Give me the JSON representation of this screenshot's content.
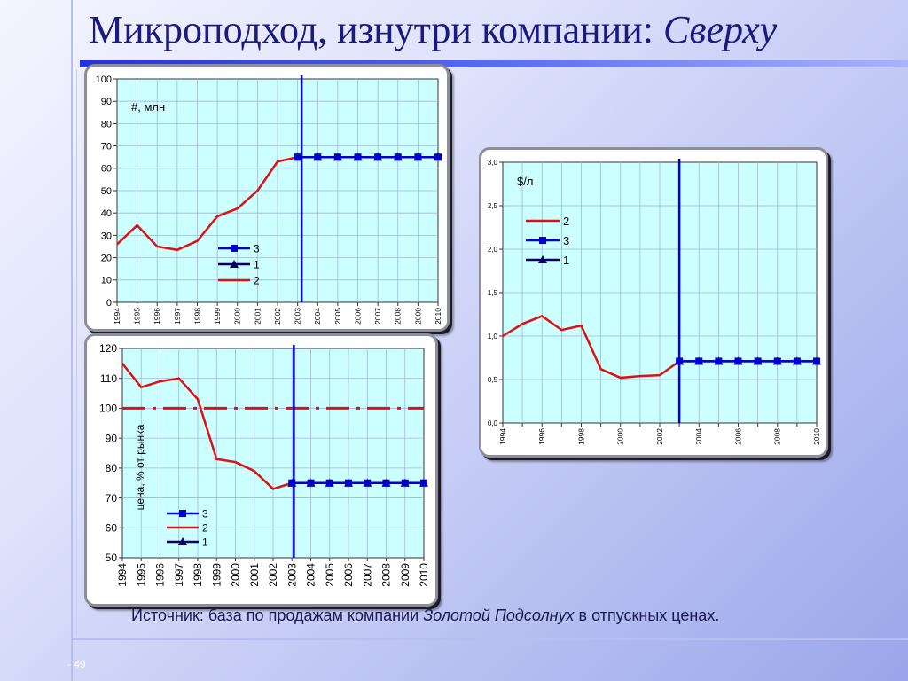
{
  "title": {
    "main": "Микроподход, изнутри компании:",
    "italic": "Сверху"
  },
  "source": {
    "prefix": "Источник: база по продажам компании",
    "company": "Золотой Подсолнух",
    "suffix": "в отпускных ценах."
  },
  "page_number": "- 49",
  "colors": {
    "red": "#dd1111",
    "blue": "#0000cc",
    "navy": "#000066",
    "plot_bg": "#ccffff",
    "grid": "#9fb7dd"
  },
  "chart_data": [
    {
      "type": "line",
      "unit_label": "#, млн",
      "x": [
        1994,
        1995,
        1996,
        1997,
        1998,
        1999,
        2000,
        2001,
        2002,
        2003,
        2004,
        2005,
        2006,
        2007,
        2008,
        2009,
        2010
      ],
      "xticks": [
        "1994",
        "1995",
        "1996",
        "1997",
        "1998",
        "1999",
        "2000",
        "2001",
        "2002",
        "2003",
        "2004",
        "2005",
        "2006",
        "2007",
        "2008",
        "2009",
        "2010"
      ],
      "ylim": [
        0,
        100
      ],
      "yticks": [
        "0",
        "10",
        "20",
        "30",
        "40",
        "50",
        "60",
        "70",
        "80",
        "90",
        "100"
      ],
      "grid": true,
      "vline_x": 2003.2,
      "legend": [
        {
          "name": "3",
          "color": "#0000cc",
          "marker": "square"
        },
        {
          "name": "1",
          "color": "#000066",
          "marker": "triangle"
        },
        {
          "name": "2",
          "color": "#dd1111",
          "marker": "none"
        }
      ],
      "legend_position": "bottom-center",
      "series": [
        {
          "name": "2",
          "color": "#dd1111",
          "x": [
            1994,
            1995,
            1996,
            1997,
            1998,
            1999,
            2000,
            2001,
            2002,
            2003,
            2004,
            2005,
            2006,
            2007,
            2008,
            2009,
            2010
          ],
          "values": [
            26,
            34.5,
            25,
            23.5,
            27.5,
            38.5,
            42,
            50,
            63,
            65,
            65,
            65,
            65,
            65,
            65,
            65,
            65
          ]
        },
        {
          "name": "1",
          "color": "#000066",
          "marker": "triangle",
          "x": [
            2003,
            2004,
            2005,
            2006,
            2007,
            2008,
            2009,
            2010
          ],
          "values": [
            65,
            65,
            65,
            65,
            65,
            65,
            65,
            65
          ]
        },
        {
          "name": "3",
          "color": "#0000cc",
          "marker": "square",
          "x": [
            2003,
            2004,
            2005,
            2006,
            2007,
            2008,
            2009,
            2010
          ],
          "values": [
            65,
            65,
            65,
            65,
            65,
            65,
            65,
            65
          ]
        }
      ]
    },
    {
      "type": "line",
      "unit_label": "$/л",
      "x": [
        1994,
        1995,
        1996,
        1997,
        1998,
        1999,
        2000,
        2001,
        2002,
        2003,
        2004,
        2005,
        2006,
        2007,
        2008,
        2009,
        2010
      ],
      "xticks": [
        "1994",
        "",
        "1996",
        "",
        "1998",
        "",
        "2000",
        "",
        "2002",
        "",
        "2004",
        "",
        "2006",
        "",
        "2008",
        "",
        "2010"
      ],
      "ylim": [
        0,
        3
      ],
      "yticks": [
        "0,0",
        "0,5",
        "1,0",
        "1,5",
        "2,0",
        "2,5",
        "3,0"
      ],
      "grid": true,
      "vline_x": 2003,
      "legend": [
        {
          "name": "2",
          "color": "#dd1111",
          "marker": "none"
        },
        {
          "name": "3",
          "color": "#0000cc",
          "marker": "square"
        },
        {
          "name": "1",
          "color": "#000066",
          "marker": "triangle"
        }
      ],
      "legend_position": "top-left",
      "series": [
        {
          "name": "2",
          "color": "#dd1111",
          "x": [
            1994,
            1995,
            1996,
            1997,
            1998,
            1999,
            2000,
            2001,
            2002,
            2003
          ],
          "values": [
            1.0,
            1.14,
            1.23,
            1.07,
            1.12,
            0.62,
            0.52,
            0.54,
            0.55,
            0.71
          ]
        },
        {
          "name": "1",
          "color": "#000066",
          "marker": "triangle",
          "x": [
            2003,
            2004,
            2005,
            2006,
            2007,
            2008,
            2009,
            2010
          ],
          "values": [
            0.71,
            0.71,
            0.71,
            0.71,
            0.71,
            0.71,
            0.71,
            0.71
          ]
        },
        {
          "name": "3",
          "color": "#0000cc",
          "marker": "square",
          "x": [
            2003,
            2004,
            2005,
            2006,
            2007,
            2008,
            2009,
            2010
          ],
          "values": [
            0.71,
            0.71,
            0.71,
            0.71,
            0.71,
            0.71,
            0.71,
            0.71
          ]
        }
      ]
    },
    {
      "type": "line",
      "ylabel": "цена, % от рынка",
      "x": [
        1994,
        1995,
        1996,
        1997,
        1998,
        1999,
        2000,
        2001,
        2002,
        2003,
        2004,
        2005,
        2006,
        2007,
        2008,
        2009,
        2010
      ],
      "xticks": [
        "1994",
        "1995",
        "1996",
        "1997",
        "1998",
        "1999",
        "2000",
        "2001",
        "2002",
        "2003",
        "2004",
        "2005",
        "2006",
        "2007",
        "2008",
        "2009",
        "2010"
      ],
      "ylim": [
        50,
        120
      ],
      "yticks": [
        "50",
        "60",
        "70",
        "80",
        "90",
        "100",
        "110",
        "120"
      ],
      "grid": true,
      "vline_x": 2003.1,
      "reference_line": {
        "value": 100,
        "color": "#dd1111",
        "style": "dash-dot"
      },
      "legend": [
        {
          "name": "3",
          "color": "#0000cc",
          "marker": "square"
        },
        {
          "name": "2",
          "color": "#dd1111",
          "marker": "none"
        },
        {
          "name": "1",
          "color": "#000066",
          "marker": "triangle"
        }
      ],
      "legend_position": "bottom-left",
      "series": [
        {
          "name": "2",
          "color": "#dd1111",
          "x": [
            1994,
            1995,
            1996,
            1997,
            1998,
            1999,
            2000,
            2001,
            2002,
            2003
          ],
          "values": [
            115,
            107,
            109,
            110,
            103,
            83,
            82,
            79,
            73,
            75
          ]
        },
        {
          "name": "1",
          "color": "#000066",
          "marker": "triangle",
          "x": [
            2003,
            2004,
            2005,
            2006,
            2007,
            2008,
            2009,
            2010
          ],
          "values": [
            75,
            75,
            75,
            75,
            75,
            75,
            75,
            75
          ]
        },
        {
          "name": "3",
          "color": "#0000cc",
          "marker": "square",
          "x": [
            2003,
            2004,
            2005,
            2006,
            2007,
            2008,
            2009,
            2010
          ],
          "values": [
            75,
            75,
            75,
            75,
            75,
            75,
            75,
            75
          ]
        }
      ]
    }
  ]
}
